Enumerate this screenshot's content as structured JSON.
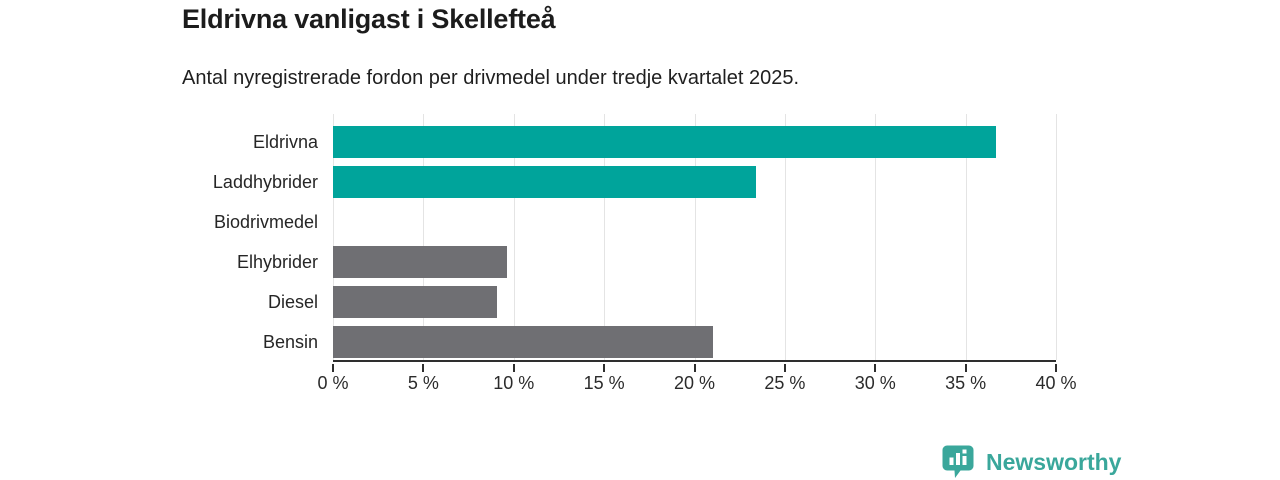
{
  "header": {
    "title": "Eldrivna vanligast i Skellefteå",
    "subtitle": "Antal nyregistrerade fordon per drivmedel under tredje kvartalet 2025."
  },
  "chart_data": {
    "type": "bar",
    "orientation": "horizontal",
    "title": "Eldrivna vanligast i Skellefteå",
    "subtitle": "Antal nyregistrerade fordon per drivmedel under tredje kvartalet 2025.",
    "categories": [
      "Eldrivna",
      "Laddhybrider",
      "Biodrivmedel",
      "Elhybrider",
      "Diesel",
      "Bensin"
    ],
    "values": [
      36.7,
      23.4,
      0,
      9.6,
      9.1,
      21.0
    ],
    "bar_colors": [
      "#00a49b",
      "#00a49b",
      "#6f6f73",
      "#6f6f73",
      "#6f6f73",
      "#6f6f73"
    ],
    "xlim": [
      0,
      40
    ],
    "xticks": [
      0,
      5,
      10,
      15,
      20,
      25,
      30,
      35,
      40
    ],
    "xtick_suffix": " %",
    "xlabel": "",
    "ylabel": "",
    "grid": true,
    "legend": "none"
  },
  "colors": {
    "highlight_teal": "#00a49b",
    "neutral_gray": "#6f6f73",
    "gridline": "#e4e4e4",
    "axis": "#2e2e2e",
    "logo_teal": "#3aa79b"
  },
  "branding": {
    "logo_text": "Newsworthy",
    "logo_icon": "bar-chart-bubble-icon"
  }
}
